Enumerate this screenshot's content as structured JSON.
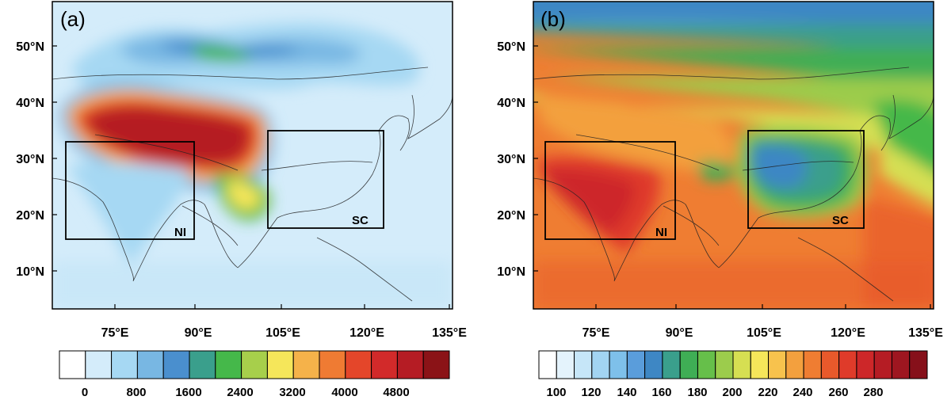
{
  "panels": [
    {
      "id": "a",
      "label": "(a)",
      "lat_ticks": [
        "50°N",
        "40°N",
        "30°N",
        "20°N",
        "10°N"
      ],
      "lon_ticks": [
        "75°E",
        "90°E",
        "105°E",
        "120°E",
        "135°E"
      ],
      "boxes": [
        {
          "name": "NI",
          "label": "NI"
        },
        {
          "name": "SC",
          "label": "SC"
        }
      ],
      "colorbar": {
        "colors": [
          "#ffffff",
          "#d4ecfa",
          "#a6d8f3",
          "#78b7e3",
          "#4a8fce",
          "#3a9f8c",
          "#45b84a",
          "#a7cf4b",
          "#f5e65a",
          "#f5b24a",
          "#ef7b33",
          "#e4462a",
          "#d22a2a",
          "#b51c24",
          "#8b1317"
        ],
        "labels": [
          "0",
          "800",
          "1600",
          "2400",
          "3200",
          "4000",
          "4800"
        ]
      }
    },
    {
      "id": "b",
      "label": "(b)",
      "lat_ticks": [
        "50°N",
        "40°N",
        "30°N",
        "20°N",
        "10°N"
      ],
      "lon_ticks": [
        "75°E",
        "90°E",
        "105°E",
        "120°E",
        "135°E"
      ],
      "boxes": [
        {
          "name": "NI",
          "label": "NI"
        },
        {
          "name": "SC",
          "label": "SC"
        }
      ],
      "colorbar": {
        "colors": [
          "#ffffff",
          "#e4f3fc",
          "#c6e6f8",
          "#a2d4f2",
          "#7ec0ea",
          "#5a9ddb",
          "#3e87c4",
          "#3a9f8c",
          "#3fae55",
          "#66bf4a",
          "#9ccc4c",
          "#d6df52",
          "#f5e65a",
          "#f7c24d",
          "#f3a03e",
          "#ef7d32",
          "#e8592b",
          "#df3b2a",
          "#cd2729",
          "#b51c24",
          "#9e1620",
          "#86101a"
        ],
        "labels": [
          "100",
          "120",
          "140",
          "160",
          "180",
          "200",
          "220",
          "240",
          "260",
          "280"
        ]
      }
    }
  ]
}
